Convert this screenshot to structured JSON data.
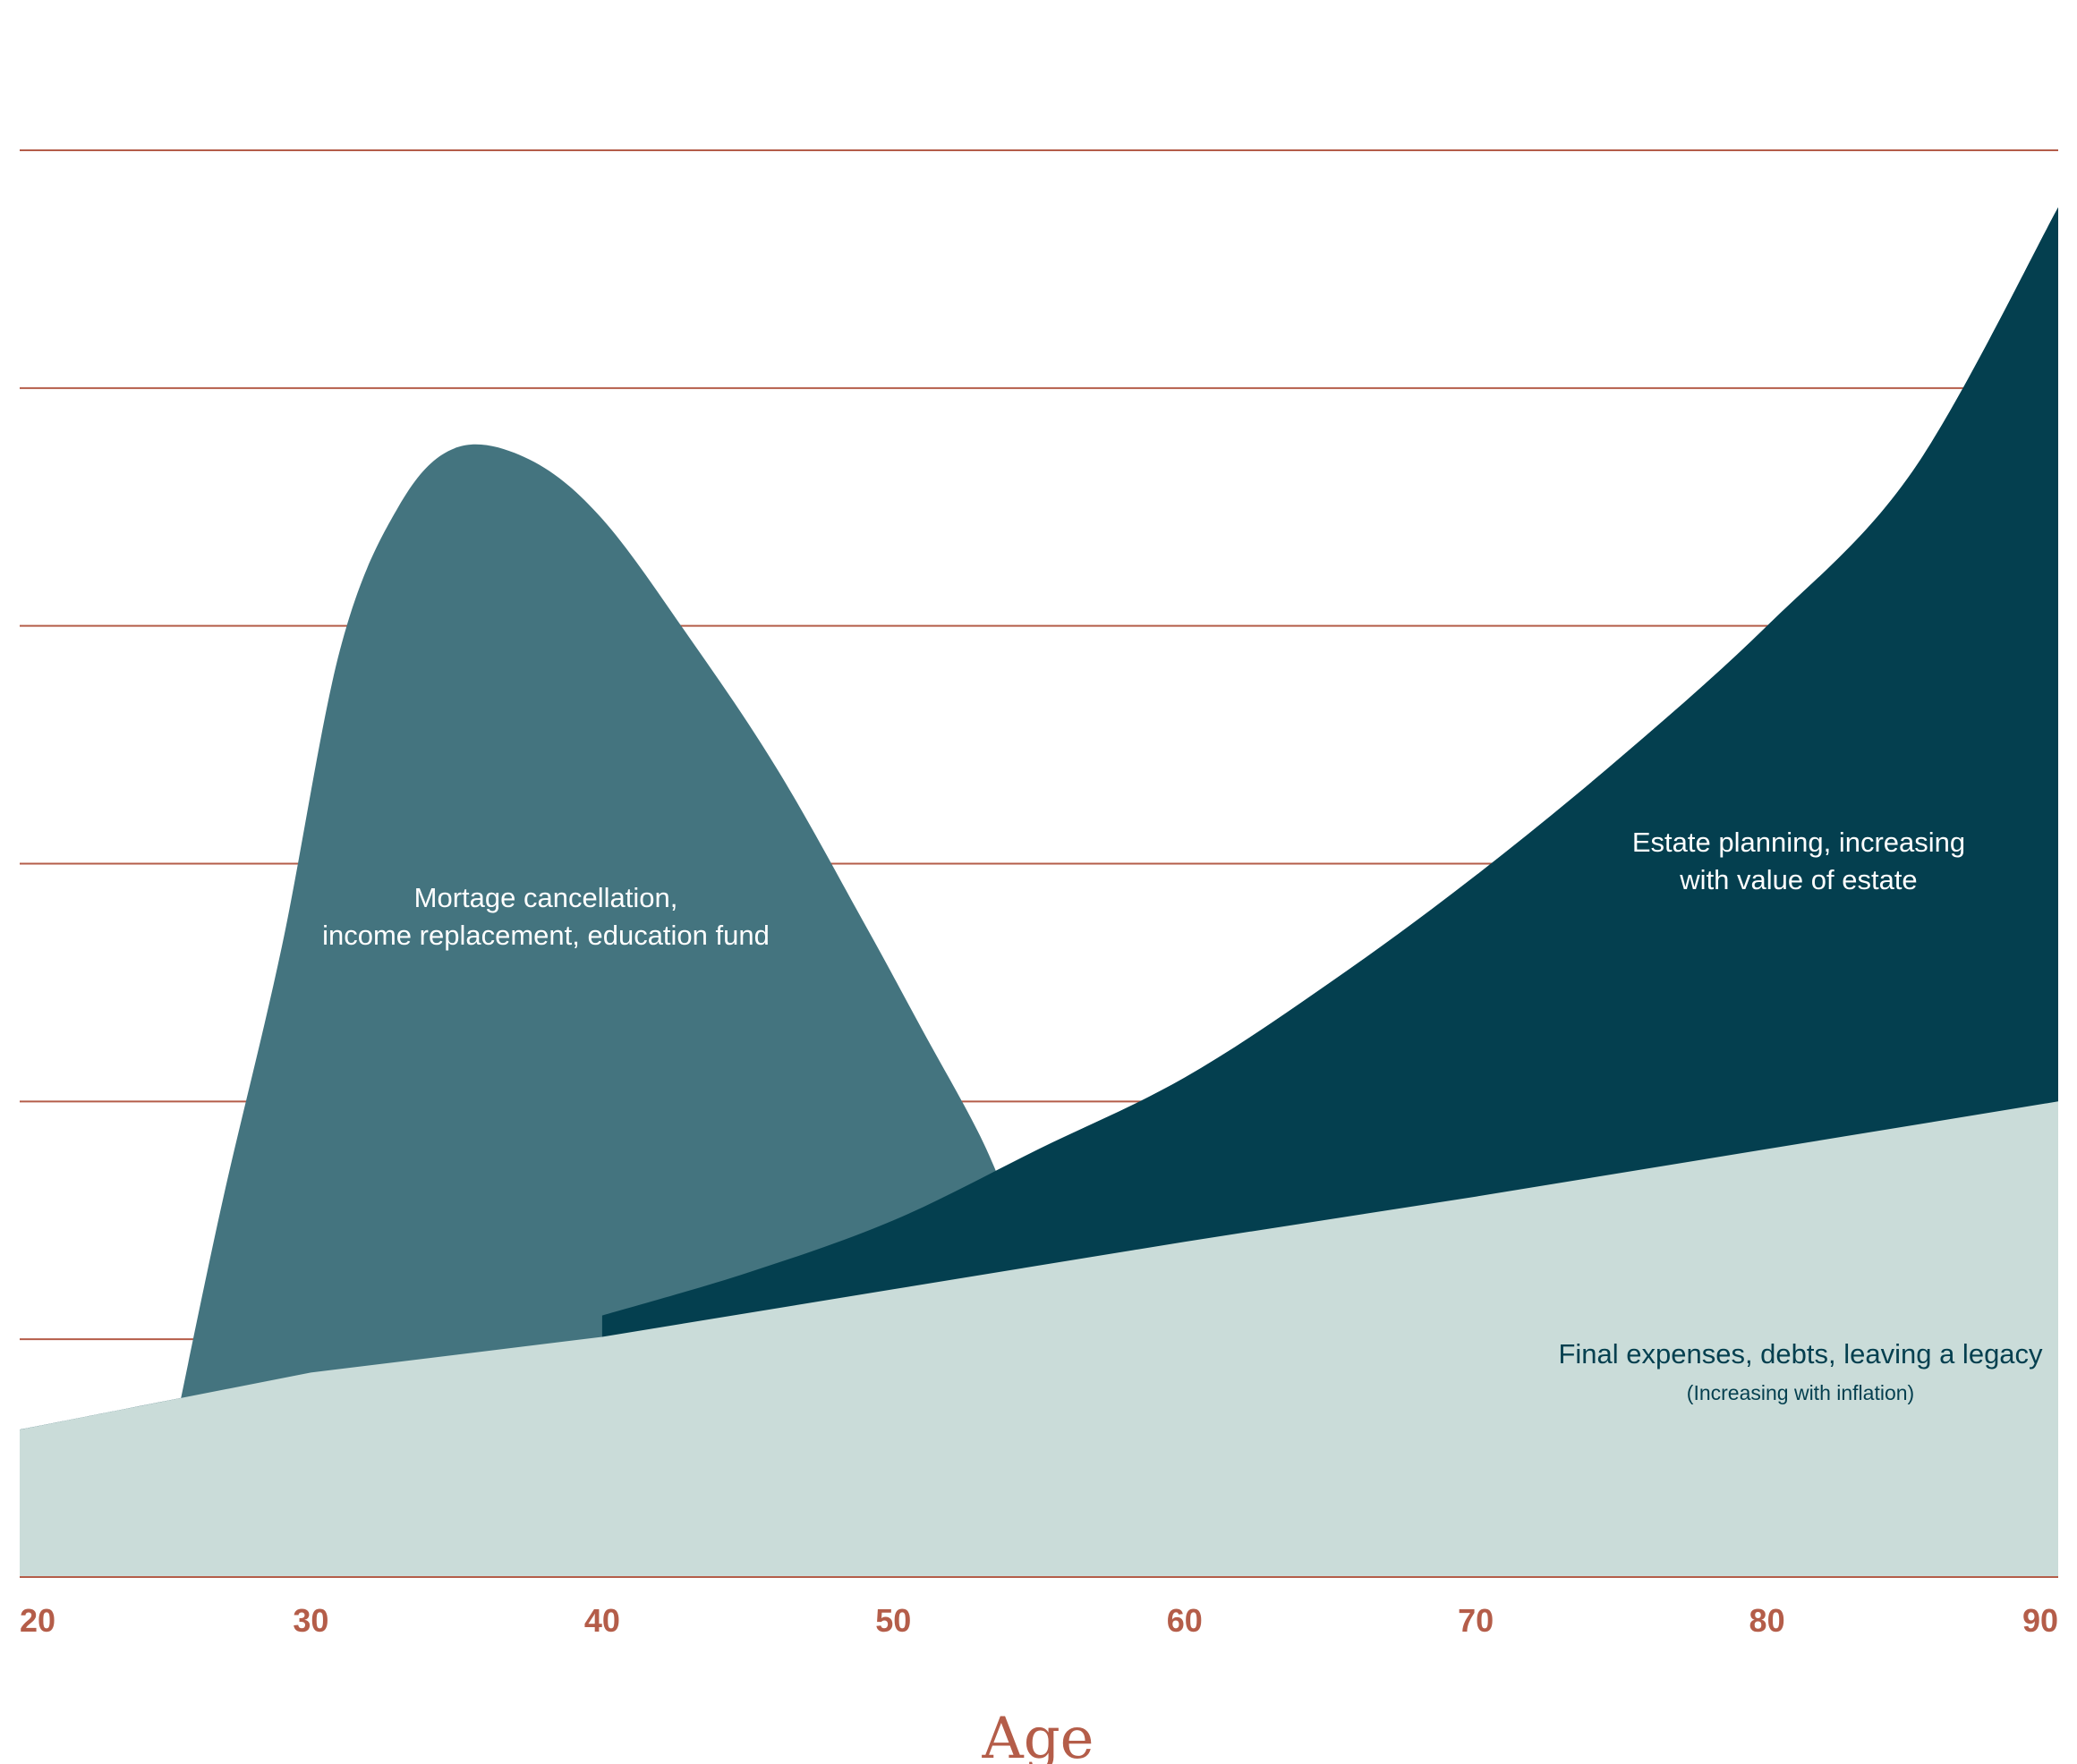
{
  "chart_data": {
    "type": "area",
    "title": "",
    "xlabel": "Age",
    "ylabel": "",
    "xlim": [
      20,
      90
    ],
    "ylim": [
      0,
      6
    ],
    "grid": true,
    "x_ticks": [
      "20",
      "30",
      "40",
      "50",
      "60",
      "70",
      "80",
      "90"
    ],
    "y_grid_values": [
      1,
      2,
      3,
      4,
      5,
      6
    ],
    "series": [
      {
        "key": "final_expenses",
        "label": "Final expenses, debts, leaving a legacy",
        "sublabel": "(Increasing with inflation)",
        "color": "#cadcd9",
        "x": [
          20,
          30,
          40,
          50,
          60,
          70,
          80,
          90
        ],
        "y": [
          0.62,
          0.86,
          1.01,
          1.21,
          1.41,
          1.6,
          1.8,
          2.0
        ]
      },
      {
        "key": "estate_planning",
        "label": "Estate planning, increasing with value of estate",
        "color": "#043f4f",
        "x": [
          20,
          25,
          30,
          35,
          40,
          45,
          50,
          55,
          60,
          65,
          70,
          75,
          80,
          85,
          90
        ],
        "y": [
          0.62,
          0.74,
          0.86,
          0.96,
          1.1,
          1.28,
          1.5,
          1.8,
          2.1,
          2.5,
          2.95,
          3.45,
          4.0,
          4.65,
          5.76
        ]
      },
      {
        "key": "mortgage_income_education",
        "label": "Mortage cancellation, income replacement, education fund",
        "color": "#44747f",
        "x": [
          25.5,
          27,
          29,
          31,
          33,
          35,
          37.5,
          40,
          43,
          46,
          49,
          51,
          53,
          54.2
        ],
        "y": [
          0.73,
          1.6,
          2.65,
          3.9,
          4.5,
          4.75,
          4.7,
          4.45,
          3.95,
          3.4,
          2.75,
          2.3,
          1.85,
          1.5
        ]
      }
    ]
  },
  "colors": {
    "grid": "#b45d49",
    "tick_text": "#b45d49",
    "axis_title": "#b45d49",
    "light_label": "#ffffff",
    "dark_label": "#043f4f"
  }
}
